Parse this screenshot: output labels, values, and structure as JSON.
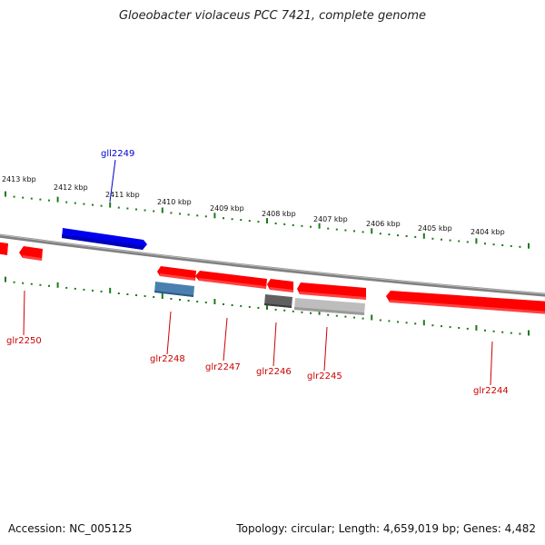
{
  "title": "Gloeobacter violaceus PCC 7421, complete genome",
  "footer": {
    "accession": "Accession: NC_005125",
    "summary": "Topology: circular; Length: 4,659,019 bp; Genes: 4,482"
  },
  "colors": {
    "forward_gene": "#0000ee",
    "reverse_gene": "#ff0000",
    "reverse_label": "#cc0000",
    "forward_label": "#0000cc",
    "tick": "#1a7a1a",
    "backbone": "#808080",
    "blue_gene": "#4a80b0",
    "dark_gray_gene": "#606060",
    "light_gray_gene": "#bdbdbd"
  },
  "kbp_ticks": [
    "2413 kbp",
    "2412 kbp",
    "2411 kbp",
    "2410 kbp",
    "2409 kbp",
    "2408 kbp",
    "2407 kbp",
    "2406 kbp",
    "2405 kbp",
    "2404 kbp"
  ],
  "gene_labels": {
    "gll2249": "gll2249",
    "glr2250": "glr2250",
    "glr2248": "glr2248",
    "glr2247": "glr2247",
    "glr2246": "glr2246",
    "glr2245": "glr2245",
    "glr2244": "glr2244"
  }
}
